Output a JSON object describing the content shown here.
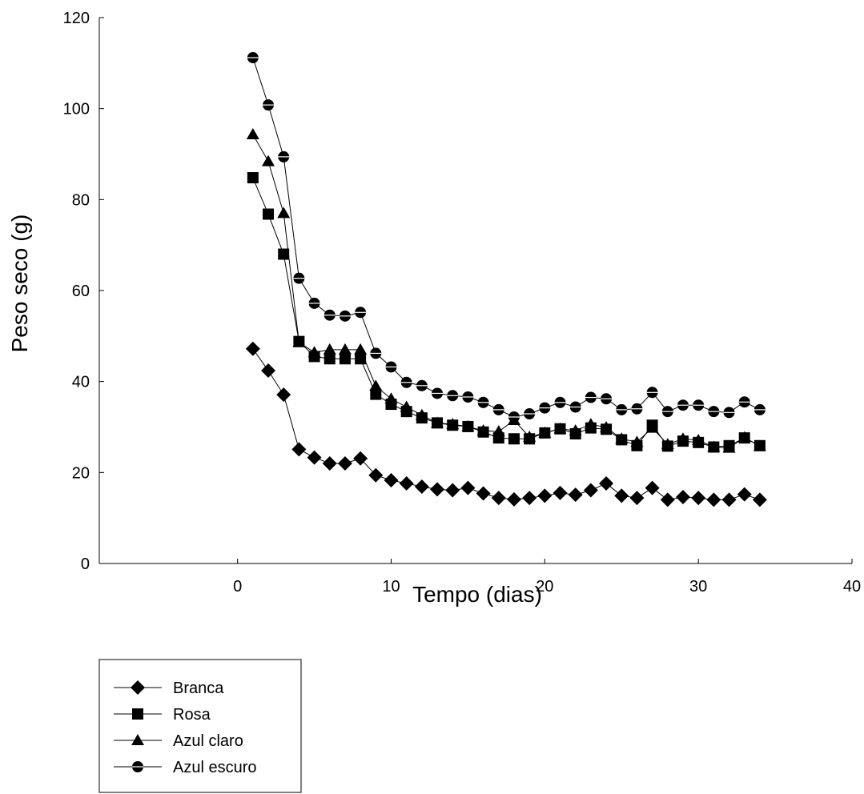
{
  "chart_data": {
    "type": "line",
    "title": "",
    "xlabel": "Tempo (dias)",
    "ylabel": "Peso seco (g)",
    "xlim": [
      -9,
      40
    ],
    "ylim": [
      0,
      120
    ],
    "x_ticks": [
      0,
      10,
      20,
      30,
      40
    ],
    "y_ticks": [
      0,
      20,
      40,
      60,
      80,
      100,
      120
    ],
    "x_tick_labels": [
      "0",
      "10",
      "20",
      "30",
      "40"
    ],
    "y_tick_labels": [
      "0",
      "20",
      "40",
      "60",
      "80",
      "100",
      "120"
    ],
    "grid": false,
    "legend_position": "bottom-left, below plot",
    "x": [
      1,
      2,
      3,
      4,
      5,
      6,
      7,
      8,
      9,
      10,
      11,
      12,
      13,
      14,
      15,
      16,
      17,
      18,
      19,
      20,
      21,
      22,
      23,
      24,
      25,
      26,
      27,
      28,
      29,
      30,
      31,
      32,
      33,
      34
    ],
    "series": [
      {
        "name": "Branca",
        "marker": "diamond",
        "values": [
          47.2,
          42.4,
          37.1,
          25.1,
          23.3,
          22.0,
          22.0,
          23.1,
          19.4,
          18.3,
          17.6,
          16.9,
          16.3,
          16.1,
          16.6,
          15.4,
          14.4,
          14.1,
          14.4,
          14.9,
          15.5,
          15.1,
          16.1,
          17.6,
          14.9,
          14.4,
          16.6,
          14.0,
          14.6,
          14.4,
          14.0,
          14.0,
          15.2,
          14.0
        ]
      },
      {
        "name": "Rosa",
        "marker": "square",
        "values": [
          84.8,
          76.8,
          68.0,
          48.8,
          45.5,
          45.0,
          45.0,
          45.0,
          37.2,
          35.0,
          33.4,
          32.0,
          30.9,
          30.4,
          30.1,
          28.9,
          27.6,
          27.4,
          27.4,
          28.7,
          29.6,
          28.5,
          29.8,
          29.5,
          27.2,
          25.9,
          30.4,
          25.8,
          26.9,
          26.6,
          25.6,
          25.9,
          27.6,
          25.9
        ]
      },
      {
        "name": "Azul claro",
        "marker": "triangle",
        "values": [
          94.3,
          88.4,
          77.0,
          48.6,
          46.4,
          47.0,
          47.0,
          47.0,
          39.0,
          36.2,
          34.4,
          32.6,
          30.9,
          30.6,
          30.1,
          29.2,
          29.0,
          31.5,
          27.8,
          28.7,
          29.6,
          29.2,
          30.6,
          29.9,
          27.4,
          26.7,
          29.8,
          26.2,
          27.4,
          27.1,
          25.6,
          25.4,
          27.7,
          25.8
        ]
      },
      {
        "name": "Azul escuro",
        "marker": "circle",
        "values": [
          111.2,
          100.8,
          89.4,
          62.7,
          57.2,
          54.6,
          54.4,
          55.2,
          46.2,
          43.2,
          39.8,
          39.1,
          37.4,
          36.9,
          36.6,
          35.4,
          33.8,
          32.2,
          32.9,
          34.2,
          35.4,
          34.4,
          36.5,
          36.2,
          33.8,
          34.0,
          37.6,
          33.4,
          34.8,
          34.8,
          33.4,
          33.2,
          35.5,
          33.8
        ]
      }
    ]
  }
}
